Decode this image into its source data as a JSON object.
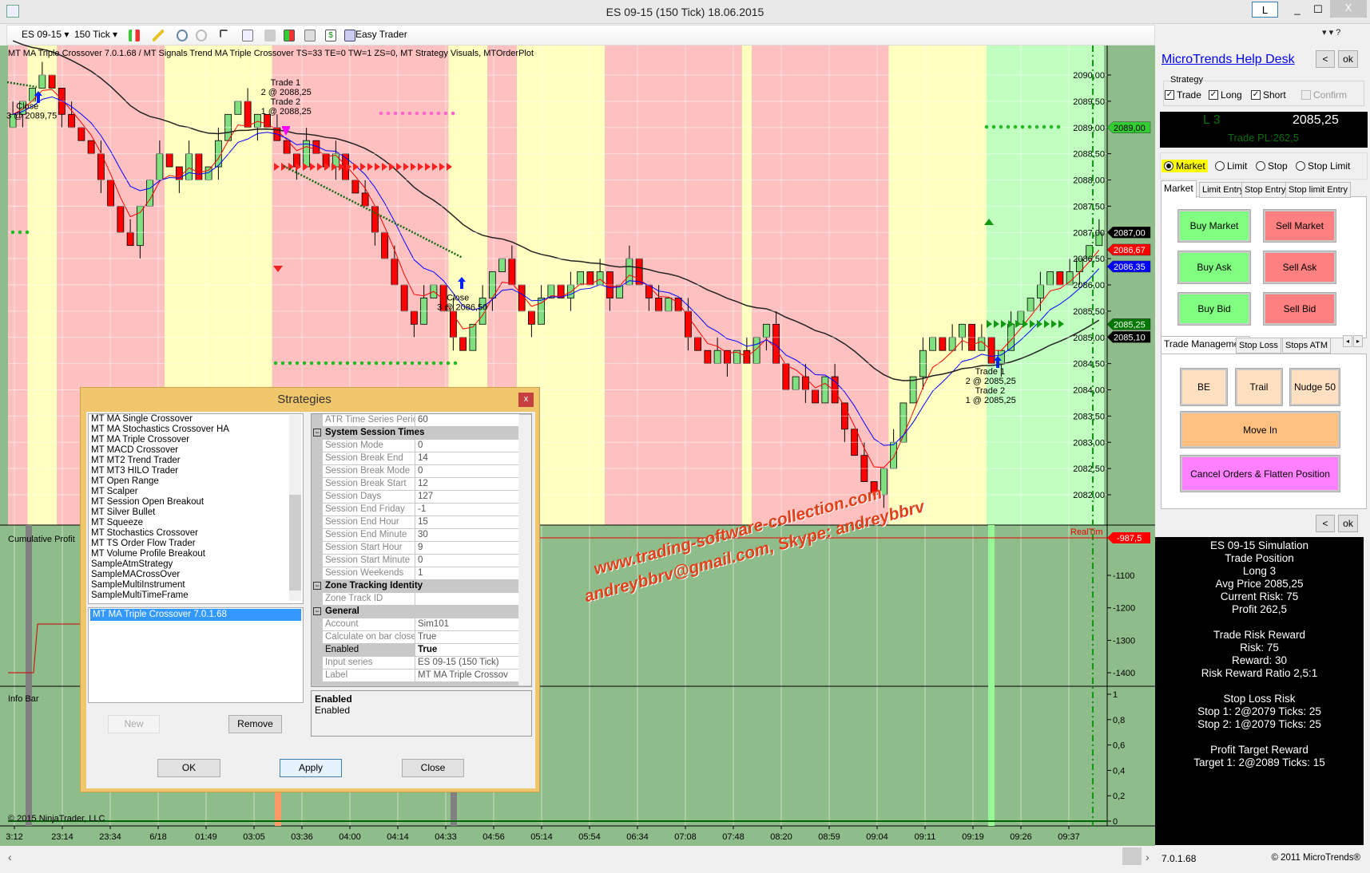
{
  "window": {
    "title": "ES 09-15 (150 Tick)  18.06.2015",
    "link_button": "L",
    "minimize": "_",
    "maximize": "☐",
    "close": "X"
  },
  "toolbar": {
    "instrument": "ES 09-15",
    "period": "150 Tick",
    "easy_trader": "Easy Trader",
    "right_menu": "▾ ▾ ?",
    "icons": [
      "candlestick-style-icon",
      "pencil-draw-icon",
      "zoom-in-icon",
      "zoom-out-icon",
      "pointer-icon",
      "data-box-icon",
      "properties-icon",
      "strategies-icon",
      "indicators-icon",
      "dollar-icon",
      "order-panel-icon"
    ]
  },
  "chart": {
    "indicator_label": "MT MA Triple Crossover 7.0.1.68 / MT Signals Trend MA Triple Crossover TS=33 TE=0 TW=1 ZS=0, MT Strategy Visuals, MTOrderPlot",
    "chart_data": {
      "type": "candlestick",
      "closes": [
        2089.25,
        2089.5,
        2089.75,
        2090.0,
        2089.75,
        2089.25,
        2089.0,
        2088.75,
        2088.5,
        2088.0,
        2087.5,
        2087.0,
        2086.75,
        2087.5,
        2088.0,
        2088.5,
        2088.25,
        2088.0,
        2088.5,
        2088.0,
        2088.25,
        2088.75,
        2089.25,
        2089.5,
        2089.0,
        2089.25,
        2089.0,
        2088.75,
        2088.5,
        2088.25,
        2088.75,
        2088.5,
        2088.25,
        2088.5,
        2088.0,
        2087.75,
        2087.5,
        2087.0,
        2086.5,
        2086.0,
        2085.5,
        2085.25,
        2085.75,
        2086.0,
        2085.5,
        2085.0,
        2084.75,
        2085.25,
        2085.75,
        2086.25,
        2086.5,
        2086.0,
        2085.5,
        2085.25,
        2085.75,
        2086.0,
        2085.75,
        2086.0,
        2086.25,
        2086.0,
        2086.25,
        2085.75,
        2086.0,
        2086.5,
        2086.0,
        2085.75,
        2085.5,
        2085.75,
        2085.5,
        2085.0,
        2084.75,
        2084.5,
        2084.75,
        2084.5,
        2084.75,
        2084.5,
        2085.0,
        2085.25,
        2084.5,
        2084.0,
        2084.25,
        2084.0,
        2083.75,
        2084.25,
        2083.75,
        2083.25,
        2082.75,
        2082.25,
        2082.0,
        2082.5,
        2083.0,
        2083.75,
        2084.25,
        2084.75,
        2085.0,
        2084.75,
        2085.0,
        2085.25,
        2084.75,
        2085.0,
        2084.5,
        2084.75,
        2085.25,
        2085.5,
        2085.75,
        2086.0,
        2086.25,
        2086.0,
        2086.25,
        2086.5,
        2086.75,
        2087.0
      ],
      "zones": [
        {
          "state": "short",
          "from": 0,
          "to": 2
        },
        {
          "state": "neutral",
          "from": 2,
          "to": 5
        },
        {
          "state": "short",
          "from": 5,
          "to": 16
        },
        {
          "state": "neutral",
          "from": 16,
          "to": 27
        },
        {
          "state": "short",
          "from": 27,
          "to": 45
        },
        {
          "state": "neutral",
          "from": 45,
          "to": 49
        },
        {
          "state": "short",
          "from": 49,
          "to": 52
        },
        {
          "state": "neutral",
          "from": 52,
          "to": 61
        },
        {
          "state": "short",
          "from": 61,
          "to": 75
        },
        {
          "state": "neutral",
          "from": 75,
          "to": 76
        },
        {
          "state": "short",
          "from": 76,
          "to": 90
        },
        {
          "state": "neutral",
          "from": 90,
          "to": 100
        },
        {
          "state": "long",
          "from": 100,
          "to": 112
        }
      ],
      "zone_colors": {
        "short": "#ffc0c0",
        "neutral": "#ffffc0",
        "long": "#c0ffc0"
      },
      "ylim": [
        2081.75,
        2090.25
      ],
      "price_ticks": [
        "2090,00",
        "2089,50",
        "2089,00",
        "2088,50",
        "2088,00",
        "2087,50",
        "2087,00",
        "2086,50",
        "2086,00",
        "2085,50",
        "2085,00",
        "2084,50",
        "2084,00",
        "2083,50",
        "2083,00",
        "2082,50",
        "2082,00"
      ],
      "time_labels": [
        "3:12",
        "23:14",
        "23:34",
        "6/18",
        "01:49",
        "03:05",
        "03:36",
        "04:00",
        "04:14",
        "04:33",
        "04:56",
        "05:14",
        "05:54",
        "06:34",
        "07:08",
        "07:48",
        "08:20",
        "08:59",
        "09:04",
        "09:11",
        "09:19",
        "09:26",
        "09:37"
      ],
      "series_colors": {
        "fast_ma": "#ff0000",
        "mid_ma": "#0000ff",
        "slow_ma": "#222222",
        "up": "#80e080",
        "down": "#ff0000"
      }
    },
    "price_tags": [
      {
        "text": "2089,00",
        "value": 2089.0,
        "bg": "#33cc33",
        "fg": "#000"
      },
      {
        "text": "2087,00",
        "value": 2087.0,
        "bg": "#000000",
        "fg": "#fff"
      },
      {
        "text": "2086,67",
        "value": 2086.67,
        "bg": "#ff0000",
        "fg": "#fff"
      },
      {
        "text": "2086,35",
        "value": 2086.35,
        "bg": "#0000ff",
        "fg": "#fff"
      },
      {
        "text": "2085,25",
        "value": 2085.25,
        "bg": "#007700",
        "fg": "#fff"
      },
      {
        "text": "2085,10",
        "value": 2085.1,
        "bg": "#000000",
        "fg": "#fff"
      }
    ],
    "annotations": [
      {
        "lines": [
          "Close",
          "3 @ 2089,75"
        ],
        "bar": 0,
        "price": 2089.35
      },
      {
        "lines": [
          "Trade 1",
          "2 @ 2088,25",
          "Trade 2",
          "1 @ 2088,25"
        ],
        "bar": 26,
        "price": 2089.8
      },
      {
        "lines": [
          "Close",
          "3 @ 2086,50"
        ],
        "bar": 44,
        "price": 2085.7
      },
      {
        "lines": [
          "Trade 1",
          "2 @ 2085,25",
          "Trade 2",
          "1 @ 2085,25"
        ],
        "bar": 98,
        "price": 2084.3
      }
    ],
    "cumulative_profit": {
      "label": "Cumulative Profit",
      "ticks": [
        "-1100",
        "-1200",
        "-1300",
        "-1400"
      ],
      "tag": "-987,5",
      "realtime_label": "RealTim"
    },
    "info_bar": {
      "label": "Info Bar",
      "ticks": [
        "1",
        "0,8",
        "0,6",
        "0,4",
        "0,2",
        "0"
      ]
    },
    "copyright": "© 2015 NinjaTrader, LLC",
    "watermark": [
      "www.trading-software-collection.com",
      "andreybbrv@gmail.com, Skype: andreybbrv"
    ]
  },
  "strategies_dialog": {
    "title": "Strategies",
    "close": "x",
    "available": [
      "MT MA Single Crossover",
      "MT MA Stochastics Crossover HA",
      "MT MA Triple Crossover",
      "MT MACD Crossover",
      "MT MT2 Trend Trader",
      "MT MT3 HILO Trader",
      "MT Open Range",
      "MT Scalper",
      "MT Session Open Breakout",
      "MT Silver Bullet",
      "MT Squeeze",
      "MT Stochastics Crossover",
      "MT TS Order Flow Trader",
      "MT Volume Profile Breakout",
      "SampleAtmStrategy",
      "SampleMACrossOver",
      "SampleMultiInstrument",
      "SampleMultiTimeFrame"
    ],
    "active": [
      "MT MA Triple Crossover 7.0.1.68"
    ],
    "new": "New",
    "remove": "Remove",
    "properties": [
      {
        "name": "ATR Time Series Peric",
        "value": "60"
      },
      {
        "category": "System Session Times"
      },
      {
        "name": "Session Mode",
        "value": "0"
      },
      {
        "name": "Session Break End",
        "value": "14"
      },
      {
        "name": "Session Break Mode",
        "value": "0"
      },
      {
        "name": "Session Break Start",
        "value": "12"
      },
      {
        "name": "Session Days",
        "value": "127"
      },
      {
        "name": "Session End Friday",
        "value": "-1"
      },
      {
        "name": "Session End Hour",
        "value": "15"
      },
      {
        "name": "Session End Minute",
        "value": "30"
      },
      {
        "name": "Session Start Hour",
        "value": "9"
      },
      {
        "name": "Session Start Minute",
        "value": "0"
      },
      {
        "name": "Session Weekends",
        "value": "1"
      },
      {
        "category": "Zone Tracking Identity"
      },
      {
        "name": "Zone Track ID",
        "value": ""
      },
      {
        "category": "General"
      },
      {
        "name": "Account",
        "value": "Sim101"
      },
      {
        "name": "Calculate on bar close",
        "value": "True"
      },
      {
        "name": "Enabled",
        "value": "True",
        "selected": true
      },
      {
        "name": "Input series",
        "value": "ES 09-15 (150 Tick)"
      },
      {
        "name": "Label",
        "value": "MT MA Triple Crossov"
      }
    ],
    "description_title": "Enabled",
    "description": "Enabled",
    "ok": "OK",
    "apply": "Apply",
    "close_btn": "Close"
  },
  "right_panel": {
    "help_link": "MicroTrends Help Desk",
    "back": "<",
    "ok": "ok",
    "strategy_group": "Strategy",
    "checks": [
      {
        "label": "Trade",
        "checked": true
      },
      {
        "label": "Long",
        "checked": true
      },
      {
        "label": "Short",
        "checked": true
      },
      {
        "label": "Confirm",
        "checked": false,
        "disabled": true
      }
    ],
    "position": "L 3",
    "price": "2085,25",
    "trade_pl": "Trade PL:262,5",
    "order_types": [
      {
        "label": "Market",
        "selected": true
      },
      {
        "label": "Limit"
      },
      {
        "label": "Stop"
      },
      {
        "label": "Stop Limit"
      }
    ],
    "entry_tabs": [
      "Market",
      "Limit Entry",
      "Stop Entry",
      "Stop limit Entry"
    ],
    "buy_buttons": [
      "Buy Market",
      "Buy Ask",
      "Buy Bid"
    ],
    "sell_buttons": [
      "Sell Market",
      "Sell Ask",
      "Sell Bid"
    ],
    "mgmt_tabs": [
      "Trade Management",
      "Stop Loss",
      "Stops ATM"
    ],
    "be": "BE",
    "trail": "Trail",
    "nudge": "Nudge 50",
    "move_in": "Move In",
    "cancel_flatten": "Cancel Orders & Flatten Position",
    "colors": {
      "buy": "#80ff80",
      "sell": "#ff8080",
      "mgmt": "#ffe0c0",
      "move_in": "#ffc080",
      "flatten": "#ff80ff",
      "highlight": "#ffff00"
    },
    "info_lines": [
      "ES 09-15 Simulation",
      "Trade Position",
      "Long 3",
      "Avg Price 2085,25",
      "Current Risk: 75",
      "Profit 262,5",
      "",
      "Trade Risk Reward",
      "Risk: 75",
      "Reward: 30",
      "Risk Reward Ratio 2,5:1",
      "",
      "Stop Loss Risk",
      "Stop 1: 2@2079 Ticks: 25",
      "Stop 2: 1@2079 Ticks: 25",
      "",
      "Profit Target Reward",
      "Target 1: 2@2089 Ticks: 15"
    ],
    "version": "7.0.1.68",
    "copyright": "© 2011 MicroTrends®"
  }
}
